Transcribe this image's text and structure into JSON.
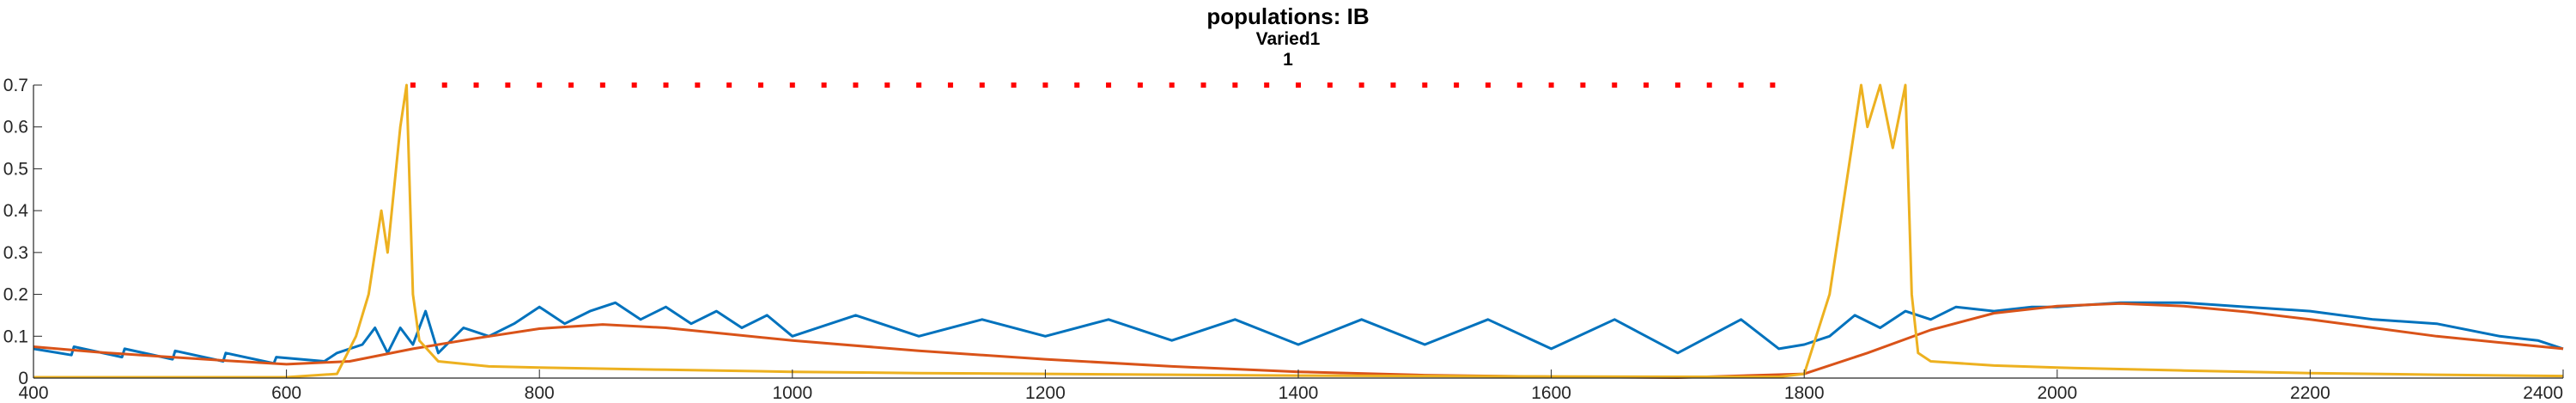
{
  "chart_data": {
    "type": "line",
    "title": "populations: IB",
    "subtitle_lines": [
      "Varied1",
      "1"
    ],
    "xlabel": "",
    "ylabel": "",
    "xlim": [
      400,
      2400
    ],
    "ylim": [
      0,
      0.7
    ],
    "xticks": [
      400,
      600,
      800,
      1000,
      1200,
      1400,
      1600,
      1800,
      2000,
      2200,
      2400
    ],
    "yticks": [
      0,
      0.1,
      0.2,
      0.3,
      0.4,
      0.5,
      0.6,
      0.7
    ],
    "ytick_labels": [
      "0",
      "0.1",
      "0.2",
      "0.3",
      "0.4",
      "0.5",
      "0.6",
      "0.7"
    ],
    "grid": false,
    "legend": "none",
    "colors": {
      "blue": "#0072BD",
      "orange": "#D95319",
      "yellow": "#EDB120",
      "red_markers": "#FF0000",
      "axis": "#262626"
    },
    "series": [
      {
        "color": "blue",
        "style": "solid",
        "x": [
          400,
          430,
          432,
          470,
          472,
          510,
          512,
          550,
          552,
          590,
          592,
          630,
          640,
          660,
          670,
          680,
          690,
          700,
          710,
          720,
          740,
          760,
          780,
          800,
          820,
          840,
          860,
          880,
          900,
          920,
          940,
          960,
          980,
          1000,
          1050,
          1100,
          1150,
          1200,
          1250,
          1300,
          1350,
          1400,
          1450,
          1500,
          1550,
          1600,
          1650,
          1700,
          1750,
          1780,
          1800,
          1820,
          1840,
          1860,
          1880,
          1900,
          1920,
          1950,
          1980,
          2000,
          2050,
          2100,
          2150,
          2200,
          2250,
          2300,
          2350,
          2380,
          2400
        ],
        "y": [
          0.07,
          0.055,
          0.075,
          0.05,
          0.07,
          0.045,
          0.065,
          0.04,
          0.06,
          0.035,
          0.05,
          0.04,
          0.06,
          0.08,
          0.12,
          0.06,
          0.12,
          0.08,
          0.16,
          0.06,
          0.12,
          0.1,
          0.13,
          0.17,
          0.13,
          0.16,
          0.18,
          0.14,
          0.17,
          0.13,
          0.16,
          0.12,
          0.15,
          0.1,
          0.15,
          0.1,
          0.14,
          0.1,
          0.14,
          0.09,
          0.14,
          0.08,
          0.14,
          0.08,
          0.14,
          0.07,
          0.14,
          0.06,
          0.14,
          0.07,
          0.08,
          0.1,
          0.15,
          0.12,
          0.16,
          0.14,
          0.17,
          0.16,
          0.17,
          0.17,
          0.18,
          0.18,
          0.17,
          0.16,
          0.14,
          0.13,
          0.1,
          0.09,
          0.07
        ]
      },
      {
        "color": "orange",
        "style": "solid",
        "x": [
          400,
          450,
          500,
          550,
          600,
          650,
          700,
          750,
          800,
          850,
          900,
          950,
          1000,
          1100,
          1200,
          1300,
          1400,
          1500,
          1600,
          1700,
          1800,
          1850,
          1900,
          1950,
          2000,
          2050,
          2100,
          2150,
          2200,
          2250,
          2300,
          2350,
          2400
        ],
        "y": [
          0.075,
          0.062,
          0.052,
          0.042,
          0.033,
          0.04,
          0.07,
          0.095,
          0.118,
          0.128,
          0.12,
          0.105,
          0.09,
          0.065,
          0.045,
          0.028,
          0.015,
          0.007,
          0.003,
          0.001,
          0.01,
          0.06,
          0.115,
          0.155,
          0.172,
          0.178,
          0.172,
          0.158,
          0.14,
          0.12,
          0.1,
          0.085,
          0.07
        ]
      },
      {
        "color": "yellow",
        "style": "solid",
        "x": [
          400,
          600,
          640,
          655,
          665,
          675,
          680,
          690,
          695,
          700,
          705,
          720,
          760,
          800,
          900,
          1000,
          1100,
          1200,
          1300,
          1400,
          1500,
          1600,
          1700,
          1780,
          1800,
          1820,
          1835,
          1845,
          1850,
          1860,
          1870,
          1880,
          1885,
          1890,
          1900,
          1950,
          2000,
          2100,
          2200,
          2300,
          2400
        ],
        "y": [
          0.002,
          0.002,
          0.01,
          0.1,
          0.2,
          0.4,
          0.3,
          0.6,
          0.7,
          0.2,
          0.09,
          0.04,
          0.028,
          0.025,
          0.02,
          0.015,
          0.012,
          0.01,
          0.008,
          0.006,
          0.005,
          0.004,
          0.003,
          0.003,
          0.01,
          0.2,
          0.5,
          0.7,
          0.6,
          0.7,
          0.55,
          0.7,
          0.2,
          0.06,
          0.04,
          0.03,
          0.025,
          0.018,
          0.012,
          0.008,
          0.005
        ]
      },
      {
        "color": "red_markers",
        "style": "dots",
        "x": [
          700,
          725,
          750,
          775,
          800,
          825,
          850,
          875,
          900,
          925,
          950,
          975,
          1000,
          1025,
          1050,
          1075,
          1100,
          1125,
          1150,
          1175,
          1200,
          1225,
          1250,
          1275,
          1300,
          1325,
          1350,
          1375,
          1400,
          1425,
          1450,
          1475,
          1500,
          1525,
          1550,
          1575,
          1600,
          1625,
          1650,
          1675,
          1700,
          1725,
          1750,
          1775
        ],
        "y": [
          0.7,
          0.7,
          0.7,
          0.7,
          0.7,
          0.7,
          0.7,
          0.7,
          0.7,
          0.7,
          0.7,
          0.7,
          0.7,
          0.7,
          0.7,
          0.7,
          0.7,
          0.7,
          0.7,
          0.7,
          0.7,
          0.7,
          0.7,
          0.7,
          0.7,
          0.7,
          0.7,
          0.7,
          0.7,
          0.7,
          0.7,
          0.7,
          0.7,
          0.7,
          0.7,
          0.7,
          0.7,
          0.7,
          0.7,
          0.7,
          0.7,
          0.7,
          0.7,
          0.7
        ]
      }
    ]
  }
}
